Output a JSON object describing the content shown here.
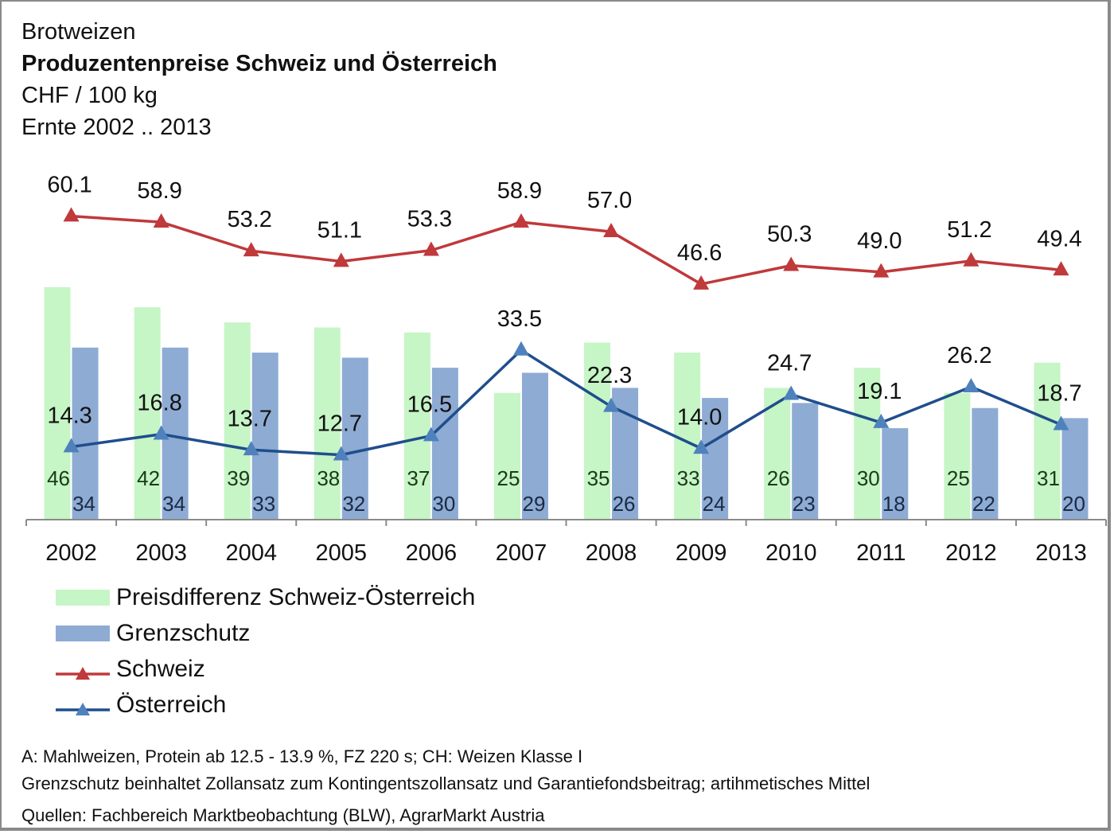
{
  "header": {
    "subtitle_top": "Brotweizen",
    "title": "Produzentenpreise Schweiz und Österreich",
    "unit": "CHF / 100 kg",
    "range": "Ernte 2002 .. 2013"
  },
  "colors": {
    "preisdifferenz": "#c6f5c6",
    "grenzschutz": "#8eabd4",
    "schweiz": "#c0393b",
    "oesterreich": "#1f4e8c",
    "oesterreich_marker": "#4f81bd",
    "axis": "#8a8a8a"
  },
  "legend": [
    {
      "key": "preisdifferenz",
      "label": "Preisdifferenz Schweiz-Österreich",
      "kind": "bar"
    },
    {
      "key": "grenzschutz",
      "label": "Grenzschutz",
      "kind": "bar"
    },
    {
      "key": "schweiz",
      "label": "Schweiz",
      "kind": "line"
    },
    {
      "key": "oesterreich",
      "label": "Österreich",
      "kind": "line"
    }
  ],
  "footnotes": [
    "A: Mahlweizen, Protein ab 12.5 - 13.9 %, FZ 220 s; CH: Weizen Klasse I",
    "Grenzschutz beinhaltet Zollansatz zum Kontingentszollansatz und Garantiefondsbeitrag; artihmetisches Mittel",
    "Quellen: Fachbereich Marktbeobachtung (BLW),  AgrarMarkt Austria"
  ],
  "chart_data": {
    "type": "bar",
    "title": "Produzentenpreise Schweiz und Österreich",
    "subtitle": "Brotweizen — CHF / 100 kg — Ernte 2002 .. 2013",
    "xlabel": "",
    "ylabel": "CHF / 100 kg",
    "ylim": [
      0,
      65
    ],
    "grid": false,
    "legend_position": "bottom-left",
    "categories": [
      "2002",
      "2003",
      "2004",
      "2005",
      "2006",
      "2007",
      "2008",
      "2009",
      "2010",
      "2011",
      "2012",
      "2013"
    ],
    "series": [
      {
        "name": "Preisdifferenz Schweiz-Österreich",
        "type": "bar",
        "values": [
          46,
          42,
          39,
          38,
          37,
          25,
          35,
          33,
          26,
          30,
          25,
          31
        ]
      },
      {
        "name": "Grenzschutz",
        "type": "bar",
        "values": [
          34,
          34,
          33,
          32,
          30,
          29,
          26,
          24,
          23,
          18,
          22,
          20
        ]
      },
      {
        "name": "Schweiz",
        "type": "line",
        "marker": "triangle",
        "values": [
          60.1,
          58.9,
          53.2,
          51.1,
          53.3,
          58.9,
          57.0,
          46.6,
          50.3,
          49.0,
          51.2,
          49.4
        ]
      },
      {
        "name": "Österreich",
        "type": "line",
        "marker": "triangle",
        "values": [
          14.3,
          16.8,
          13.7,
          12.7,
          16.5,
          33.5,
          22.3,
          14.0,
          24.7,
          19.1,
          26.2,
          18.7
        ]
      }
    ]
  }
}
